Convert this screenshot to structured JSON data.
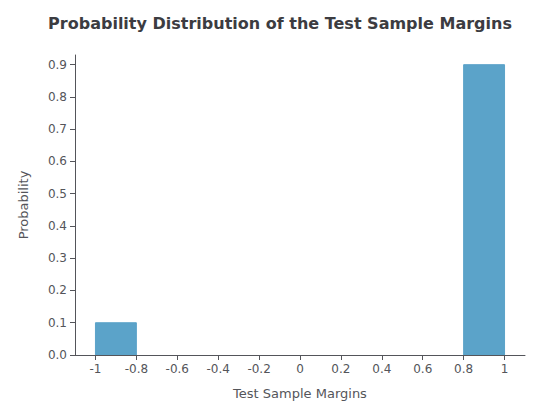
{
  "chart_data": {
    "type": "bar",
    "title": "Probability Distribution of the Test Sample Margins",
    "xlabel": "Test Sample Margins",
    "ylabel": "Probability",
    "left": [
      -1.0,
      0.8
    ],
    "right": [
      -0.8,
      1.0
    ],
    "values": [
      0.1,
      0.9
    ],
    "color": "#5BA3C9",
    "xlim": [
      -1.1,
      1.1
    ],
    "xticks": [
      -1,
      -0.8,
      -0.6,
      -0.4,
      -0.2,
      0,
      0.2,
      0.4,
      0.6,
      0.8,
      1
    ],
    "ylim": [
      0,
      0.93
    ],
    "yticks": [
      {
        "value": 0,
        "label": "0.0"
      },
      0.1,
      0.2,
      0.3,
      0.4,
      0.5,
      0.6,
      0.7,
      0.8,
      0.9
    ],
    "grid": false
  }
}
